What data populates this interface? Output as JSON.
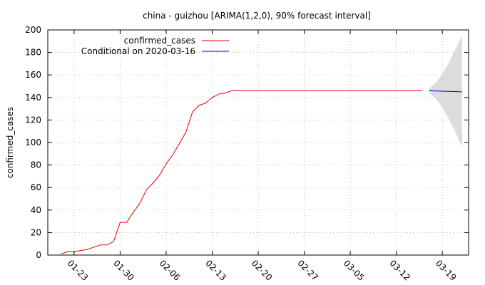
{
  "chart_data": {
    "type": "line",
    "title": "china - guizhou [ARIMA(1,2,0), 90% forecast interval]",
    "ylabel": "confirmed_cases",
    "xlabel": "",
    "ylim": [
      0,
      200
    ],
    "yticks": [
      0,
      20,
      40,
      60,
      80,
      100,
      120,
      140,
      160,
      180,
      200
    ],
    "xlim": [
      "2020-01-19",
      "2020-03-23"
    ],
    "xticks": [
      {
        "date": "2020-01-23",
        "label": "01-23"
      },
      {
        "date": "2020-01-30",
        "label": "01-30"
      },
      {
        "date": "2020-02-06",
        "label": "02-06"
      },
      {
        "date": "2020-02-13",
        "label": "02-13"
      },
      {
        "date": "2020-02-20",
        "label": "02-20"
      },
      {
        "date": "2020-02-27",
        "label": "02-27"
      },
      {
        "date": "2020-03-05",
        "label": "03-05"
      },
      {
        "date": "2020-03-12",
        "label": "03-12"
      },
      {
        "date": "2020-03-19",
        "label": "03-19"
      }
    ],
    "grid": true,
    "legend_position": "top-left",
    "colors": {
      "observed": "#e00000",
      "forecast": "#0000cc",
      "band": "#dcdcdc"
    },
    "series": [
      {
        "name": "confirmed_cases",
        "points": [
          [
            "2020-01-21",
            1
          ],
          [
            "2020-01-22",
            3
          ],
          [
            "2020-01-23",
            3
          ],
          [
            "2020-01-24",
            4
          ],
          [
            "2020-01-25",
            5
          ],
          [
            "2020-01-26",
            7
          ],
          [
            "2020-01-27",
            9
          ],
          [
            "2020-01-28",
            9
          ],
          [
            "2020-01-29",
            12
          ],
          [
            "2020-01-30",
            29
          ],
          [
            "2020-01-31",
            29
          ],
          [
            "2020-02-01",
            38
          ],
          [
            "2020-02-02",
            46
          ],
          [
            "2020-02-03",
            58
          ],
          [
            "2020-02-04",
            64
          ],
          [
            "2020-02-05",
            71
          ],
          [
            "2020-02-06",
            81
          ],
          [
            "2020-02-07",
            89
          ],
          [
            "2020-02-08",
            99
          ],
          [
            "2020-02-09",
            109
          ],
          [
            "2020-02-10",
            127
          ],
          [
            "2020-02-11",
            133
          ],
          [
            "2020-02-12",
            135
          ],
          [
            "2020-02-13",
            140
          ],
          [
            "2020-02-14",
            143
          ],
          [
            "2020-02-15",
            144
          ],
          [
            "2020-02-16",
            146
          ],
          [
            "2020-02-17",
            146
          ],
          [
            "2020-02-20",
            146
          ],
          [
            "2020-02-27",
            146
          ],
          [
            "2020-03-05",
            146
          ],
          [
            "2020-03-12",
            146
          ],
          [
            "2020-03-16",
            146
          ]
        ]
      },
      {
        "name": "Conditional on 2020-03-16",
        "points": [
          [
            "2020-03-17",
            146
          ],
          [
            "2020-03-22",
            145
          ]
        ],
        "interval": [
          [
            "2020-03-17",
            144,
            148
          ],
          [
            "2020-03-18",
            139,
            153
          ],
          [
            "2020-03-19",
            131,
            161
          ],
          [
            "2020-03-20",
            121,
            171
          ],
          [
            "2020-03-21",
            109,
            183
          ],
          [
            "2020-03-22",
            96,
            195
          ]
        ]
      }
    ]
  }
}
